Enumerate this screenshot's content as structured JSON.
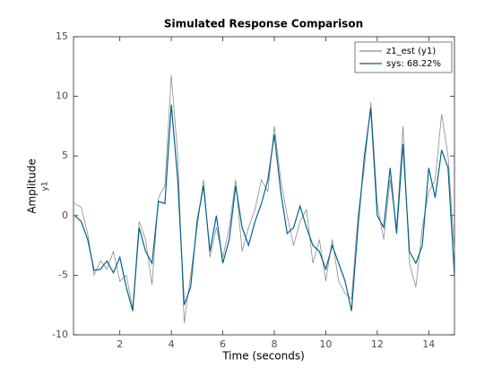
{
  "chart_data": {
    "type": "line",
    "title": "Simulated Response Comparison",
    "x_label": "Time (seconds)",
    "y_label": "Amplitude",
    "y_sublabel": "y1",
    "x": [
      0.25,
      0.5,
      0.75,
      1.0,
      1.25,
      1.5,
      1.75,
      2.0,
      2.25,
      2.5,
      2.75,
      3.0,
      3.25,
      3.5,
      3.75,
      4.0,
      4.25,
      4.5,
      4.75,
      5.0,
      5.25,
      5.5,
      5.75,
      6.0,
      6.25,
      6.5,
      6.75,
      7.0,
      7.25,
      7.5,
      7.75,
      8.0,
      8.25,
      8.5,
      8.75,
      9.0,
      9.25,
      9.5,
      9.75,
      10.0,
      10.25,
      10.5,
      10.75,
      11.0,
      11.25,
      11.5,
      11.75,
      12.0,
      12.25,
      12.5,
      12.75,
      13.0,
      13.25,
      13.5,
      13.75,
      14.0,
      14.25,
      14.5,
      14.75,
      15.0
    ],
    "series": [
      {
        "name": "z1_est (y1)",
        "color": "#8c8c8c",
        "values": [
          1,
          0.7,
          -1.5,
          -5,
          -3.8,
          -4.5,
          -3,
          -5.5,
          -5,
          -7.8,
          -0.5,
          -2,
          -5.8,
          1.5,
          2.5,
          11.8,
          5,
          -9,
          -5,
          -1,
          3,
          -3.5,
          -1,
          -3.5,
          -1,
          3,
          -3,
          -1,
          0.5,
          3,
          2,
          7.5,
          3,
          0,
          -2.5,
          -0.5,
          0.5,
          -4,
          -2,
          -5.5,
          -2,
          -5.5,
          -6.5,
          -7,
          0,
          4,
          9.5,
          1,
          -2,
          3,
          -1,
          7.5,
          -4,
          -6,
          -1,
          2,
          3,
          8.5,
          5,
          -3
        ]
      },
      {
        "name": "sys: 68.22%",
        "color": "#00628a",
        "values": [
          0,
          -0.5,
          -2,
          -4.6,
          -4.5,
          -3.8,
          -4.8,
          -3.5,
          -6,
          -8,
          -1,
          -3,
          -4,
          1.2,
          1,
          9.3,
          3,
          -7.5,
          -6,
          -0.5,
          2.5,
          -3,
          0,
          -4,
          -2,
          2.5,
          -1,
          -2.5,
          -0.5,
          1,
          3,
          6.8,
          2,
          -1.5,
          -1,
          0.8,
          -1,
          -2.5,
          -3,
          -4.5,
          -2.5,
          -4,
          -5.5,
          -8,
          -1,
          5,
          9,
          0,
          -1,
          4,
          -1.5,
          6,
          -3,
          -4,
          -2.5,
          4,
          1.5,
          5.5,
          4,
          -5
        ]
      }
    ],
    "xlim": [
      0.2,
      15
    ],
    "ylim": [
      -10,
      15
    ],
    "xticks": [
      2,
      4,
      6,
      8,
      10,
      12,
      14
    ],
    "yticks": [
      -10,
      -5,
      0,
      5,
      10,
      15
    ],
    "legend": "top-right"
  }
}
